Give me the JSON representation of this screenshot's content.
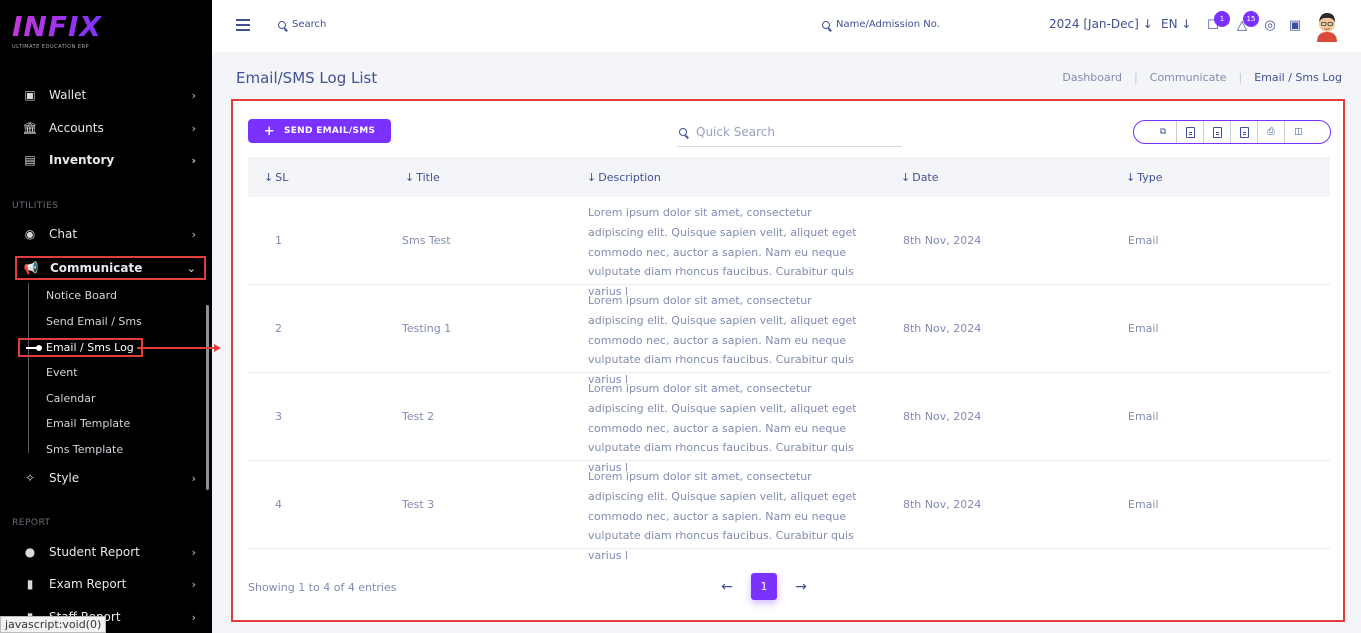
{
  "sidebar": {
    "logo": "INFIX",
    "logo_sub": "ULTIMATE EDUCATION ERP",
    "items_top": [
      {
        "label": "Wallet",
        "icon": "wallet-icon"
      },
      {
        "label": "Accounts",
        "icon": "bank-icon"
      },
      {
        "label": "Inventory",
        "icon": "inventory-icon"
      }
    ],
    "section_utilities": "UTILITIES",
    "chat": "Chat",
    "communicate": "Communicate",
    "sub_items": [
      "Notice Board",
      "Send Email / Sms",
      "Email / Sms Log",
      "Event",
      "Calendar",
      "Email Template",
      "Sms Template"
    ],
    "style": "Style",
    "section_report": "REPORT",
    "report_items": [
      "Student Report",
      "Exam Report",
      "Staff Report"
    ],
    "status_tip": "javascript:void(0)"
  },
  "topbar": {
    "search": "Search",
    "search_admission": "Name/Admission No.",
    "year": "2024 [Jan-Dec]",
    "lang": "EN",
    "chat_badge": "1",
    "notif_badge": "15"
  },
  "page": {
    "title": "Email/SMS Log List",
    "breadcrumb": [
      "Dashboard",
      "Communicate",
      "Email / Sms Log"
    ]
  },
  "toolbar": {
    "send_label": "SEND EMAIL/SMS",
    "search_placeholder": "Quick Search",
    "tools": [
      "copy-icon",
      "excel-icon",
      "csv-icon",
      "pdf-icon",
      "print-icon",
      "columns-icon"
    ]
  },
  "table": {
    "headers": [
      "SL",
      "Title",
      "Description",
      "Date",
      "Type"
    ],
    "rows": [
      {
        "sl": "1",
        "title": "Sms Test",
        "description": "Lorem ipsum dolor sit amet, consectetur adipiscing elit. Quisque sapien velit, aliquet eget commodo nec, auctor a sapien. Nam eu neque vulputate diam rhoncus faucibus. Curabitur quis varius l",
        "date": "8th Nov, 2024",
        "type": "Email"
      },
      {
        "sl": "2",
        "title": "Testing 1",
        "description": "Lorem ipsum dolor sit amet, consectetur adipiscing elit. Quisque sapien velit, aliquet eget commodo nec, auctor a sapien. Nam eu neque vulputate diam rhoncus faucibus. Curabitur quis varius l",
        "date": "8th Nov, 2024",
        "type": "Email"
      },
      {
        "sl": "3",
        "title": "Test 2",
        "description": "Lorem ipsum dolor sit amet, consectetur adipiscing elit. Quisque sapien velit, aliquet eget commodo nec, auctor a sapien. Nam eu neque vulputate diam rhoncus faucibus. Curabitur quis varius l",
        "date": "8th Nov, 2024",
        "type": "Email"
      },
      {
        "sl": "4",
        "title": "Test 3",
        "description": "Lorem ipsum dolor sit amet, consectetur adipiscing elit. Quisque sapien velit, aliquet eget commodo nec, auctor a sapien. Nam eu neque vulputate diam rhoncus faucibus. Curabitur quis varius l",
        "date": "8th Nov, 2024",
        "type": "Email"
      }
    ],
    "showing": "Showing 1 to 4 of 4 entries",
    "current_page": "1"
  },
  "colors": {
    "accent": "#7c32ff",
    "text": "#415094",
    "muted": "#828bb2",
    "highlight": "#e23c3c"
  }
}
